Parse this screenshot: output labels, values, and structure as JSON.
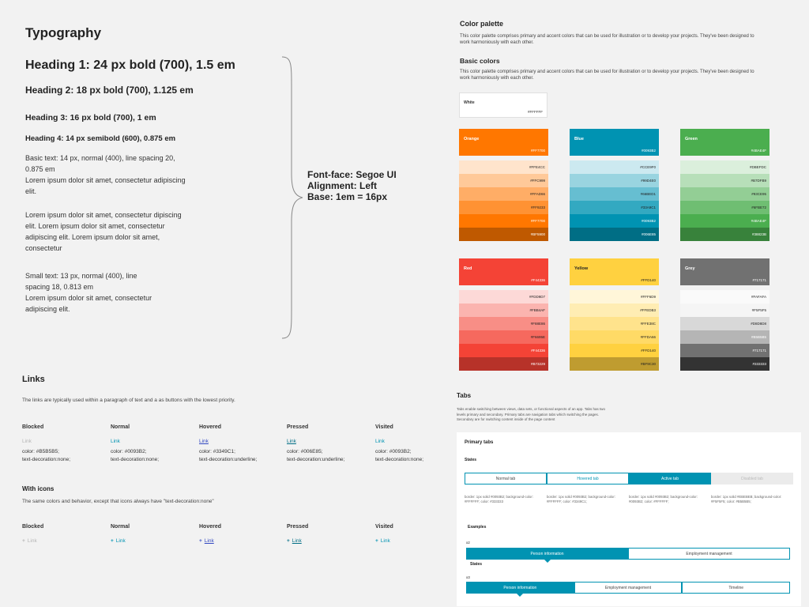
{
  "typography": {
    "title": "Typography",
    "h1": "Heading 1:  24 px bold (700), 1.5 em",
    "h2": "Heading 2: 18 px bold (700), 1.125 em",
    "h3": "Heading 3: 16 px bold (700), 1 em",
    "h4": "Heading 4: 14 px semibold (600), 0.875 em",
    "basic_lines": [
      "Basic text: 14 px, normal (400), line spacing 20,",
      "0.875 em",
      "Lorem ipsum dolor sit amet, consectetur adipiscing",
      "elit."
    ],
    "lorem_lines": [
      "Lorem ipsum dolor sit amet, consectetur dipiscing",
      "elit. Lorem ipsum dolor sit amet, consectetur",
      "adipiscing elit. Lorem ipsum dolor sit amet,",
      "consectetur"
    ],
    "small_lines": [
      "Small text: 13 px, normal (400), line",
      "spacing 18, 0.813 em",
      "Lorem ipsum dolor sit amet, consectetur",
      "adipiscing elit."
    ],
    "font_face": "Font-face: Segoe UI",
    "alignment": "Alignment: Left",
    "base": "Base: 1em = 16px"
  },
  "links": {
    "title": "Links",
    "description": "The links are typically used within a paragraph of text and a as buttons with the lowest priority.",
    "states": [
      {
        "head": "Blocked",
        "link": "Link",
        "color": "color: #B5B5B5;",
        "deco": "text-decoration:none;"
      },
      {
        "head": "Normal",
        "link": "Link",
        "color": "color: #0093B2;",
        "deco": "text-decoration:none;"
      },
      {
        "head": "Hovered",
        "link": "Link",
        "color": "color: #3349C1;",
        "deco": "text-decoration:underline;"
      },
      {
        "head": "Pressed",
        "link": "Link",
        "color": "color: #006E85;",
        "deco": "text-decoration:underline;"
      },
      {
        "head": "Visited",
        "link": "Link",
        "color": "color: #0093B2;",
        "deco": "text-decoration:none;"
      }
    ],
    "icons_title": "With icons",
    "icons_description": "The same colors and behavior, except that icons always have \"text-decoration:none\"",
    "icon_states": [
      {
        "head": "Blocked",
        "icon": "+",
        "link": "Link"
      },
      {
        "head": "Normal",
        "icon": "+",
        "link": "Link"
      },
      {
        "head": "Hovered",
        "icon": "+",
        "link": "Link"
      },
      {
        "head": "Pressed",
        "icon": "+",
        "link": "Link"
      },
      {
        "head": "Visited",
        "icon": "+",
        "link": "Link"
      }
    ]
  },
  "palette": {
    "title": "Color palette",
    "description": "This color palette comprises primary and accent colors that can be used for illustration or to develop your projects. They've been designed to work harmoniously with each other.",
    "basic_title": "Basic colors",
    "basic_description": "This color palette comprises primary and accent colors that can be used for illustration or to develop your projects. They've been designed to work harmoniously with each other.",
    "white": {
      "name": "White",
      "hex": "#FFFFFF"
    },
    "groups": [
      {
        "name": "Orange",
        "hex": "#FF7700",
        "color": "#ff7700",
        "shades": [
          {
            "hex": "#FFE4CC",
            "color": "#ffe4cc"
          },
          {
            "hex": "#FFC999",
            "color": "#ffc999"
          },
          {
            "hex": "#FFAD66",
            "color": "#ffad66"
          },
          {
            "hex": "#FF9233",
            "color": "#ff9233"
          },
          {
            "hex": "#FF7700",
            "color": "#ff7700"
          },
          {
            "hex": "#BF5900",
            "color": "#bf5900"
          }
        ]
      },
      {
        "name": "Blue",
        "hex": "#0093B2",
        "color": "#0093b2",
        "shades": [
          {
            "hex": "#CCE9F0",
            "color": "#cce9f0"
          },
          {
            "hex": "#99D4E0",
            "color": "#99d4e0"
          },
          {
            "hex": "#66BED1",
            "color": "#66bed1"
          },
          {
            "hex": "#33A9C1",
            "color": "#33a9c1"
          },
          {
            "hex": "#0093B2",
            "color": "#0093b2"
          },
          {
            "hex": "#006E85",
            "color": "#006e85"
          }
        ]
      },
      {
        "name": "Green",
        "hex": "#4BAE4F",
        "color": "#4bae4f",
        "shades": [
          {
            "hex": "#DBEFDC",
            "color": "#dbefdc"
          },
          {
            "hex": "#B7DFB9",
            "color": "#b7dfb9"
          },
          {
            "hex": "#93CE95",
            "color": "#93ce95"
          },
          {
            "hex": "#6FBE72",
            "color": "#6fbe72"
          },
          {
            "hex": "#4BAE4F",
            "color": "#4bae4f"
          },
          {
            "hex": "#38823B",
            "color": "#38823b"
          }
        ]
      },
      {
        "name": "Red",
        "hex": "#F44336",
        "color": "#f44336",
        "shades": [
          {
            "hex": "#FDD9D7",
            "color": "#fdd9d7"
          },
          {
            "hex": "#FBB4AF",
            "color": "#fbb4af"
          },
          {
            "hex": "#F88E86",
            "color": "#f88e86"
          },
          {
            "hex": "#F6695E",
            "color": "#f6695e"
          },
          {
            "hex": "#F44336",
            "color": "#f44336"
          },
          {
            "hex": "#B73229",
            "color": "#b73229"
          }
        ]
      },
      {
        "name": "Yellow",
        "hex": "#FFD140",
        "color": "#ffd140",
        "shades": [
          {
            "hex": "#FFF6D9",
            "color": "#fff6d9"
          },
          {
            "hex": "#FFEDB3",
            "color": "#ffedb3"
          },
          {
            "hex": "#FFE38C",
            "color": "#ffe38c"
          },
          {
            "hex": "#FFDA66",
            "color": "#ffda66"
          },
          {
            "hex": "#FFD140",
            "color": "#ffd140"
          },
          {
            "hex": "#BF9C30",
            "color": "#bf9c30"
          }
        ]
      },
      {
        "name": "Grey",
        "hex": "#717171",
        "color": "#717171",
        "shades": [
          {
            "hex": "#FAFAFA",
            "color": "#fafafa"
          },
          {
            "hex": "#F5F5F5",
            "color": "#f5f5f5"
          },
          {
            "hex": "#D8D8D8",
            "color": "#d8d8d8"
          },
          {
            "hex": "#B5B5B5",
            "color": "#b5b5b5"
          },
          {
            "hex": "#717171",
            "color": "#717171"
          },
          {
            "hex": "#333333",
            "color": "#333333"
          }
        ]
      }
    ]
  },
  "tabs": {
    "title": "Tabs",
    "description": "Tabs enable switching between views, data sets, or functional aspects of an app. Tabs has two levels primary and secondary. Primary tabs are navigation tabs which switching the pages. Secondary are for switching content inside of the page content",
    "primary_title": "Primary tabs",
    "states_label": "States",
    "state_tabs": [
      "Normal tab",
      "Hovered tab",
      "Active tab",
      "Disabled tab"
    ],
    "state_css": [
      "border: 1px solid #0093B2; background-color: #FFFFFF; color: #333333",
      "border: 1px solid #0093B2; background-color: #FFFFFF; color: #3349C1;",
      "border: 1px solid #0093B2; background-color: #0093B2; color: #FFFFFF;",
      "border: 1px solid #EBEBEB; background-color: #F5F5F5; color: #B5B5B5;"
    ],
    "examples_label": "Examples",
    "x2_label": "x2",
    "x2_tabs": [
      "Person information",
      "Employment management"
    ],
    "x3_label": "x3",
    "x3_tabs": [
      "Person information",
      "Employment management",
      "Timeline"
    ]
  }
}
